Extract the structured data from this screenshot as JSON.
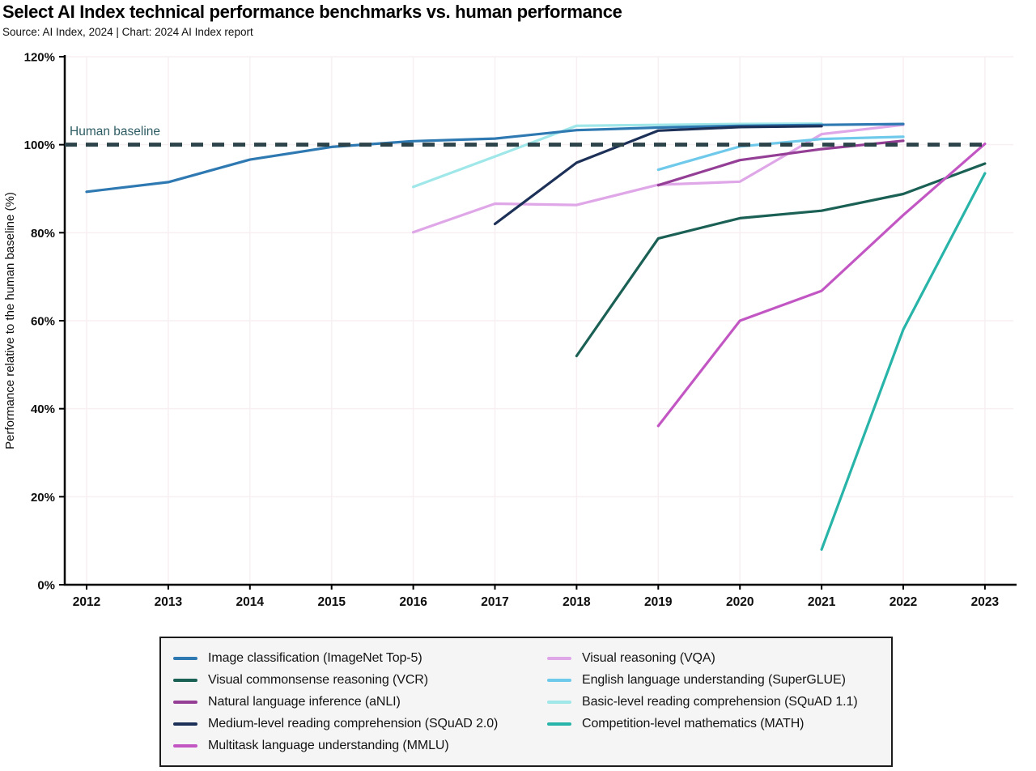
{
  "header": {
    "title": "Select AI Index technical performance benchmarks vs. human performance",
    "source": "Source: AI Index, 2024 | Chart: 2024 AI Index report"
  },
  "chart_data": {
    "type": "line",
    "title": "Select AI Index technical performance benchmarks vs. human performance",
    "xlabel": "",
    "ylabel": "Performance relative to the human baseline (%)",
    "ylim": [
      0,
      120
    ],
    "yticks": [
      0,
      20,
      40,
      60,
      80,
      100,
      120
    ],
    "ytick_suffix": "%",
    "xticks": [
      2012,
      2013,
      2014,
      2015,
      2016,
      2017,
      2018,
      2019,
      2020,
      2021,
      2022,
      2023
    ],
    "grid": true,
    "grid_color": "#f7eff2",
    "legend_position": "bottom",
    "legend_columns": 2,
    "baseline": {
      "label": "Human baseline",
      "value": 100,
      "color": "#2c434a",
      "label_color": "#2d5c63"
    },
    "series": [
      {
        "id": "imagenet",
        "name": "Image classification (ImageNet Top-5)",
        "color": "#2e79b2",
        "points": [
          [
            2012,
            89.3
          ],
          [
            2013,
            91.5
          ],
          [
            2014,
            96.6
          ],
          [
            2015,
            99.5
          ],
          [
            2016,
            100.8
          ],
          [
            2017,
            101.4
          ],
          [
            2018,
            103.3
          ],
          [
            2019,
            103.9
          ],
          [
            2020,
            104.3
          ],
          [
            2021,
            104.5
          ],
          [
            2022,
            104.7
          ]
        ]
      },
      {
        "id": "vcr",
        "name": "Visual commonsense reasoning (VCR)",
        "color": "#1b6055",
        "points": [
          [
            2018,
            52.0
          ],
          [
            2019,
            78.7
          ],
          [
            2020,
            83.3
          ],
          [
            2021,
            85.0
          ],
          [
            2022,
            88.8
          ],
          [
            2023,
            95.7
          ]
        ]
      },
      {
        "id": "anli",
        "name": "Natural language inference (aNLI)",
        "color": "#943e96",
        "points": [
          [
            2019,
            90.8
          ],
          [
            2020,
            96.5
          ],
          [
            2021,
            99.0
          ],
          [
            2022,
            100.9
          ]
        ]
      },
      {
        "id": "squad20",
        "name": "Medium-level reading comprehension (SQuAD 2.0)",
        "color": "#1d3158",
        "points": [
          [
            2017,
            82.0
          ],
          [
            2018,
            95.9
          ],
          [
            2019,
            103.2
          ],
          [
            2020,
            104.0
          ],
          [
            2021,
            104.2
          ]
        ]
      },
      {
        "id": "mmlu",
        "name": "Multitask language understanding (MMLU)",
        "color": "#c257c4",
        "points": [
          [
            2019,
            36.1
          ],
          [
            2020,
            60.0
          ],
          [
            2021,
            66.8
          ],
          [
            2022,
            84.0
          ],
          [
            2023,
            100.2
          ]
        ]
      },
      {
        "id": "vqa",
        "name": "Visual reasoning (VQA)",
        "color": "#dfa6e8",
        "points": [
          [
            2016,
            80.1
          ],
          [
            2017,
            86.6
          ],
          [
            2018,
            86.3
          ],
          [
            2019,
            90.9
          ],
          [
            2020,
            91.6
          ],
          [
            2021,
            102.4
          ],
          [
            2022,
            104.5
          ]
        ]
      },
      {
        "id": "superglue",
        "name": "English language understanding (SuperGLUE)",
        "color": "#6fc9ea",
        "points": [
          [
            2019,
            94.3
          ],
          [
            2020,
            99.6
          ],
          [
            2021,
            101.3
          ],
          [
            2022,
            101.8
          ]
        ]
      },
      {
        "id": "squad11",
        "name": "Basic-level reading comprehension (SQuAD 1.1)",
        "color": "#9fe7e9",
        "points": [
          [
            2016,
            90.4
          ],
          [
            2017,
            97.3
          ],
          [
            2018,
            104.3
          ],
          [
            2019,
            104.5
          ],
          [
            2020,
            104.7
          ],
          [
            2021,
            104.8
          ]
        ]
      },
      {
        "id": "math",
        "name": "Competition-level mathematics (MATH)",
        "color": "#28b4a8",
        "points": [
          [
            2021,
            8.0
          ],
          [
            2022,
            58.0
          ],
          [
            2023,
            93.5
          ]
        ]
      }
    ],
    "draw_order": [
      "squad11",
      "vqa",
      "superglue",
      "imagenet",
      "vcr",
      "anli",
      "mmlu",
      "squad20",
      "math"
    ]
  }
}
